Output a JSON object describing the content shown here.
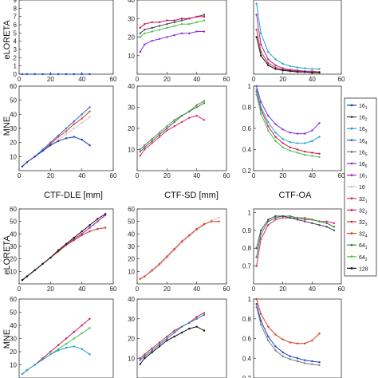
{
  "row_labels": [
    "eLORETA",
    "MNE",
    "eLORETA",
    "MNE"
  ],
  "column_titles": [
    "CTF-DLE [mm]",
    "CTF-SD [mm]",
    "CTF-OA"
  ],
  "legend": {
    "entries": [
      {
        "base": "16",
        "sub": "1",
        "color": "#1f3fbf"
      },
      {
        "base": "16",
        "sub": "2",
        "color": "#444466"
      },
      {
        "base": "16",
        "sub": "3",
        "color": "#1fa5c8"
      },
      {
        "base": "16",
        "sub": "4",
        "color": "#2b6ed6"
      },
      {
        "base": "16",
        "sub": "5",
        "color": "#7a7a7a"
      },
      {
        "base": "16",
        "sub": "6",
        "color": "#8a2be2"
      },
      {
        "base": "16",
        "sub": "7",
        "color": "#b01fb0"
      },
      {
        "base": "16",
        "sub": "",
        "color": "#c8c8c8"
      },
      {
        "base": "32",
        "sub": "1",
        "color": "#e0247a"
      },
      {
        "base": "32",
        "sub": "2",
        "color": "#d4145a"
      },
      {
        "base": "32",
        "sub": "3",
        "color": "#c0392b"
      },
      {
        "base": "32",
        "sub": "4",
        "color": "#e03c1f"
      },
      {
        "base": "64",
        "sub": "1",
        "color": "#2e8b2e"
      },
      {
        "base": "64",
        "sub": "2",
        "color": "#47c447"
      },
      {
        "base": "128",
        "sub": "",
        "color": "#111111"
      }
    ]
  },
  "chart_data": [
    {
      "type": "line",
      "id": "r0c0",
      "row_label": "eLORETA",
      "xlim": [
        0,
        60
      ],
      "ylim": [
        0,
        9
      ],
      "xticks": [
        "0",
        "20",
        "40",
        "60"
      ],
      "yticks": [
        "0",
        "1",
        "2",
        "3",
        "4",
        "5",
        "6",
        "7",
        "8",
        "9"
      ],
      "x": [
        2,
        5,
        10,
        15,
        20,
        25,
        30,
        35,
        40,
        45
      ],
      "series": [
        {
          "values": [
            0,
            0,
            0,
            0,
            0,
            0,
            0,
            0,
            0,
            0
          ]
        }
      ]
    },
    {
      "type": "line",
      "id": "r0c1",
      "row_label": "",
      "xlim": [
        0,
        60
      ],
      "ylim": [
        0,
        40
      ],
      "xticks": [
        "0",
        "20",
        "40",
        "60"
      ],
      "yticks": [
        "10",
        "20",
        "30",
        "40"
      ],
      "x": [
        2,
        5,
        10,
        15,
        20,
        25,
        30,
        35,
        40,
        45
      ],
      "series": [
        {
          "values": [
            22,
            24,
            25,
            26,
            27,
            28,
            29,
            30,
            31,
            32
          ]
        },
        {
          "values": [
            12,
            16,
            18,
            19,
            20,
            21,
            22,
            22,
            23,
            23
          ]
        },
        {
          "values": [
            25,
            27,
            28,
            28,
            29,
            29,
            30,
            30,
            31,
            31
          ]
        },
        {
          "values": [
            20,
            22,
            23,
            24,
            25,
            26,
            27,
            27,
            28,
            29
          ]
        }
      ]
    },
    {
      "type": "line",
      "id": "r0c2",
      "row_label": "",
      "xlim": [
        0,
        60
      ],
      "ylim": [
        0,
        1
      ],
      "xticks": [
        "0",
        "20",
        "40",
        "60"
      ],
      "yticks": [],
      "x": [
        2,
        5,
        10,
        15,
        20,
        25,
        30,
        35,
        40,
        45
      ],
      "series": [
        {
          "values": [
            0.95,
            0.55,
            0.3,
            0.2,
            0.14,
            0.11,
            0.09,
            0.08,
            0.07,
            0.07
          ]
        },
        {
          "values": [
            0.8,
            0.4,
            0.2,
            0.12,
            0.08,
            0.06,
            0.05,
            0.04,
            0.04,
            0.03
          ]
        },
        {
          "values": [
            0.6,
            0.3,
            0.15,
            0.09,
            0.06,
            0.05,
            0.04,
            0.03,
            0.03,
            0.03
          ]
        },
        {
          "values": [
            0.5,
            0.25,
            0.12,
            0.07,
            0.05,
            0.04,
            0.03,
            0.03,
            0.02,
            0.02
          ]
        }
      ]
    },
    {
      "type": "line",
      "id": "r1c0",
      "row_label": "MNE",
      "xlim": [
        0,
        60
      ],
      "ylim": [
        0,
        60
      ],
      "xticks": [
        "0",
        "20",
        "40",
        "60"
      ],
      "yticks": [
        "10",
        "20",
        "30",
        "40",
        "50",
        "60"
      ],
      "x": [
        2,
        5,
        10,
        15,
        20,
        25,
        30,
        35,
        40,
        45
      ],
      "series": [
        {
          "values": [
            3,
            6,
            10,
            15,
            20,
            25,
            30,
            35,
            40,
            45
          ]
        },
        {
          "values": [
            3,
            6,
            10,
            14,
            18,
            22,
            26,
            30,
            34,
            38
          ]
        },
        {
          "values": [
            3,
            6,
            10,
            14,
            19,
            24,
            28,
            33,
            37,
            42
          ]
        },
        {
          "values": [
            3,
            6,
            10,
            14,
            18,
            21,
            23,
            24,
            22,
            18
          ]
        }
      ]
    },
    {
      "type": "line",
      "id": "r1c1",
      "row_label": "",
      "xlim": [
        0,
        60
      ],
      "ylim": [
        0,
        40
      ],
      "xticks": [
        "0",
        "20",
        "40",
        "60"
      ],
      "yticks": [
        "10",
        "20",
        "30",
        "40"
      ],
      "x": [
        2,
        5,
        10,
        15,
        20,
        25,
        30,
        35,
        40,
        45
      ],
      "series": [
        {
          "values": [
            10,
            12,
            15,
            18,
            21,
            24,
            26,
            28,
            31,
            33
          ]
        },
        {
          "values": [
            7,
            10,
            13,
            16,
            19,
            21,
            23,
            25,
            26,
            24
          ]
        },
        {
          "values": [
            9,
            11,
            14,
            17,
            20,
            23,
            26,
            28,
            30,
            32
          ]
        }
      ]
    },
    {
      "type": "line",
      "id": "r1c2",
      "row_label": "",
      "xlim": [
        0,
        60
      ],
      "ylim": [
        0.2,
        1
      ],
      "xticks": [
        "0",
        "20",
        "40",
        "60"
      ],
      "yticks": [
        "0.2",
        "0.4",
        "0.6",
        "0.8",
        "1"
      ],
      "x": [
        2,
        5,
        10,
        15,
        20,
        25,
        30,
        35,
        40,
        45
      ],
      "series": [
        {
          "values": [
            1.0,
            0.85,
            0.72,
            0.64,
            0.59,
            0.56,
            0.55,
            0.55,
            0.58,
            0.65
          ]
        },
        {
          "values": [
            0.95,
            0.78,
            0.62,
            0.52,
            0.46,
            0.42,
            0.4,
            0.38,
            0.37,
            0.36
          ]
        },
        {
          "values": [
            0.92,
            0.74,
            0.58,
            0.48,
            0.42,
            0.39,
            0.37,
            0.35,
            0.34,
            0.33
          ]
        },
        {
          "values": [
            0.97,
            0.8,
            0.66,
            0.56,
            0.5,
            0.47,
            0.46,
            0.46,
            0.48,
            0.52
          ]
        }
      ]
    },
    {
      "type": "line",
      "id": "r2c0",
      "row_label": "eLORETA",
      "xlim": [
        0,
        60
      ],
      "ylim": [
        0,
        60
      ],
      "xticks": [
        "0",
        "20",
        "40",
        "60"
      ],
      "yticks": [
        "10",
        "20",
        "30",
        "40",
        "50",
        "60"
      ],
      "x": [
        2,
        5,
        10,
        15,
        20,
        25,
        30,
        35,
        40,
        45,
        50,
        55
      ],
      "series": [
        {
          "values": [
            3,
            6,
            11,
            16,
            21,
            26,
            31,
            36,
            40,
            45,
            50,
            55
          ]
        },
        {
          "values": [
            3,
            6,
            11,
            16,
            21,
            26,
            31,
            35,
            39,
            42,
            44,
            45
          ]
        },
        {
          "values": [
            3,
            6,
            11,
            16,
            21,
            27,
            32,
            37,
            42,
            47,
            52,
            56
          ]
        }
      ]
    },
    {
      "type": "line",
      "id": "r2c1",
      "row_label": "",
      "xlim": [
        0,
        60
      ],
      "ylim": [
        0,
        60
      ],
      "xticks": [
        "0",
        "20",
        "40",
        "60"
      ],
      "yticks": [
        "10",
        "20",
        "30",
        "40",
        "50",
        "60"
      ],
      "x": [
        2,
        5,
        10,
        15,
        20,
        25,
        30,
        35,
        40,
        45,
        50,
        55
      ],
      "series": [
        {
          "values": [
            4,
            6,
            10,
            15,
            21,
            27,
            33,
            38,
            43,
            47,
            51,
            53
          ]
        },
        {
          "values": [
            4,
            6,
            11,
            16,
            22,
            28,
            34,
            39,
            44,
            48,
            50,
            50
          ]
        }
      ]
    },
    {
      "type": "line",
      "id": "r2c2",
      "row_label": "",
      "xlim": [
        0,
        60
      ],
      "ylim": [
        0.6,
        1.02
      ],
      "xticks": [
        "0",
        "20",
        "40",
        "60"
      ],
      "yticks": [
        "0.7",
        "0.8",
        "0.9",
        "1"
      ],
      "x": [
        2,
        5,
        10,
        15,
        20,
        25,
        30,
        35,
        40,
        45,
        50,
        55
      ],
      "series": [
        {
          "values": [
            0.7,
            0.85,
            0.93,
            0.96,
            0.97,
            0.97,
            0.97,
            0.96,
            0.96,
            0.95,
            0.95,
            0.94
          ]
        },
        {
          "values": [
            0.75,
            0.88,
            0.95,
            0.97,
            0.98,
            0.98,
            0.97,
            0.97,
            0.96,
            0.95,
            0.94,
            0.92
          ]
        },
        {
          "values": [
            0.8,
            0.9,
            0.96,
            0.98,
            0.98,
            0.97,
            0.96,
            0.95,
            0.94,
            0.93,
            0.92,
            0.9
          ]
        }
      ]
    },
    {
      "type": "line",
      "id": "r3c0",
      "row_label": "MNE",
      "xlim": [
        0,
        60
      ],
      "ylim": [
        0,
        60
      ],
      "xticks": [],
      "yticks": [
        "10",
        "20",
        "30",
        "40",
        "50",
        "60"
      ],
      "x": [
        2,
        5,
        10,
        15,
        20,
        25,
        30,
        35,
        40,
        45
      ],
      "series": [
        {
          "values": [
            3,
            6,
            10,
            15,
            20,
            25,
            30,
            35,
            40,
            45
          ]
        },
        {
          "values": [
            3,
            6,
            10,
            14,
            18,
            22,
            26,
            30,
            34,
            38
          ]
        },
        {
          "values": [
            3,
            6,
            10,
            14,
            18,
            21,
            23,
            24,
            22,
            18
          ]
        }
      ]
    },
    {
      "type": "line",
      "id": "r3c1",
      "row_label": "",
      "xlim": [
        0,
        60
      ],
      "ylim": [
        0,
        40
      ],
      "xticks": [],
      "yticks": [
        "10",
        "20",
        "30",
        "40"
      ],
      "x": [
        2,
        5,
        10,
        15,
        20,
        25,
        30,
        35,
        40,
        45
      ],
      "series": [
        {
          "values": [
            10,
            12,
            15,
            18,
            21,
            24,
            26,
            28,
            31,
            33
          ]
        },
        {
          "values": [
            7,
            10,
            13,
            16,
            19,
            21,
            23,
            25,
            26,
            24
          ]
        },
        {
          "values": [
            9,
            11,
            14,
            17,
            20,
            23,
            26,
            28,
            30,
            32
          ]
        }
      ]
    },
    {
      "type": "line",
      "id": "r3c2",
      "row_label": "",
      "xlim": [
        0,
        60
      ],
      "ylim": [
        0.2,
        1
      ],
      "xticks": [],
      "yticks": [
        "0.2",
        "0.4",
        "0.6",
        "0.8",
        "1"
      ],
      "x": [
        2,
        5,
        10,
        15,
        20,
        25,
        30,
        35,
        40,
        45
      ],
      "series": [
        {
          "values": [
            1.0,
            0.85,
            0.72,
            0.64,
            0.59,
            0.56,
            0.55,
            0.55,
            0.58,
            0.65
          ]
        },
        {
          "values": [
            0.95,
            0.78,
            0.62,
            0.52,
            0.46,
            0.42,
            0.4,
            0.38,
            0.37,
            0.36
          ]
        },
        {
          "values": [
            0.92,
            0.74,
            0.58,
            0.48,
            0.42,
            0.39,
            0.37,
            0.35,
            0.34,
            0.33
          ]
        }
      ]
    }
  ]
}
